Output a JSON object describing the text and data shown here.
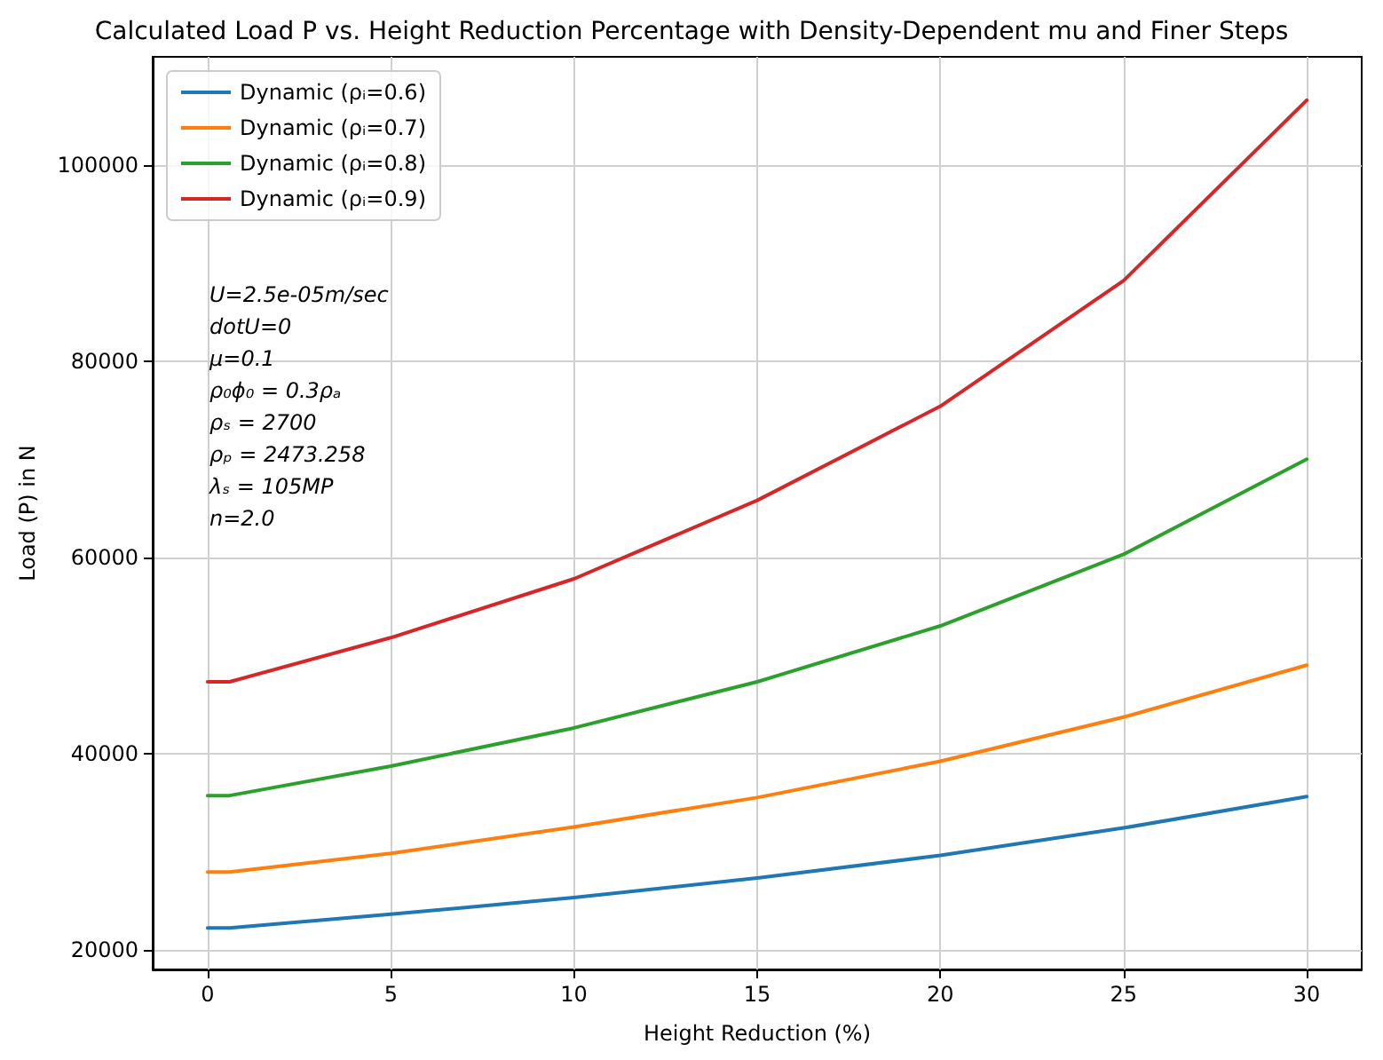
{
  "chart_data": {
    "type": "line",
    "title": "Calculated Load P vs. Height Reduction Percentage with Density-Dependent mu and Finer Steps",
    "xlabel": "Height Reduction (%)",
    "ylabel": "Load (P) in N",
    "x": [
      0,
      0.6,
      5,
      10,
      15,
      20,
      25,
      30
    ],
    "series": [
      {
        "name": "Dynamic (ρᵢ=0.6)",
        "color": "#1f77b4",
        "values": [
          22200,
          22200,
          23600,
          25300,
          27300,
          29600,
          32400,
          35600
        ]
      },
      {
        "name": "Dynamic (ρᵢ=0.7)",
        "color": "#ff7f0e",
        "values": [
          27900,
          27900,
          29800,
          32500,
          35500,
          39200,
          43700,
          49000
        ]
      },
      {
        "name": "Dynamic (ρᵢ=0.8)",
        "color": "#2ca02c",
        "values": [
          35700,
          35700,
          38700,
          42600,
          47300,
          53000,
          60300,
          70000
        ]
      },
      {
        "name": "Dynamic (ρᵢ=0.9)",
        "color": "#d62728",
        "values": [
          47300,
          47300,
          51800,
          57800,
          65800,
          75400,
          88200,
          106600
        ]
      }
    ],
    "xlim": [
      -1.5,
      31.5
    ],
    "xticks": [
      0,
      5,
      10,
      15,
      20,
      25,
      30
    ],
    "ylim": [
      17970,
      111030
    ],
    "yticks": [
      20000,
      40000,
      60000,
      80000,
      100000
    ],
    "annotations": [
      "U=2.5e-05m/sec",
      "dotU=0",
      "μ=0.1",
      "ρ₀ϕ₀ = 0.3ρₐ",
      "ρₛ = 2700",
      "ρₚ = 2473.258",
      "λₛ = 105MP",
      "n=2.0"
    ],
    "grid": true,
    "legend": "top left",
    "marker": "none",
    "line_style": "solid"
  }
}
